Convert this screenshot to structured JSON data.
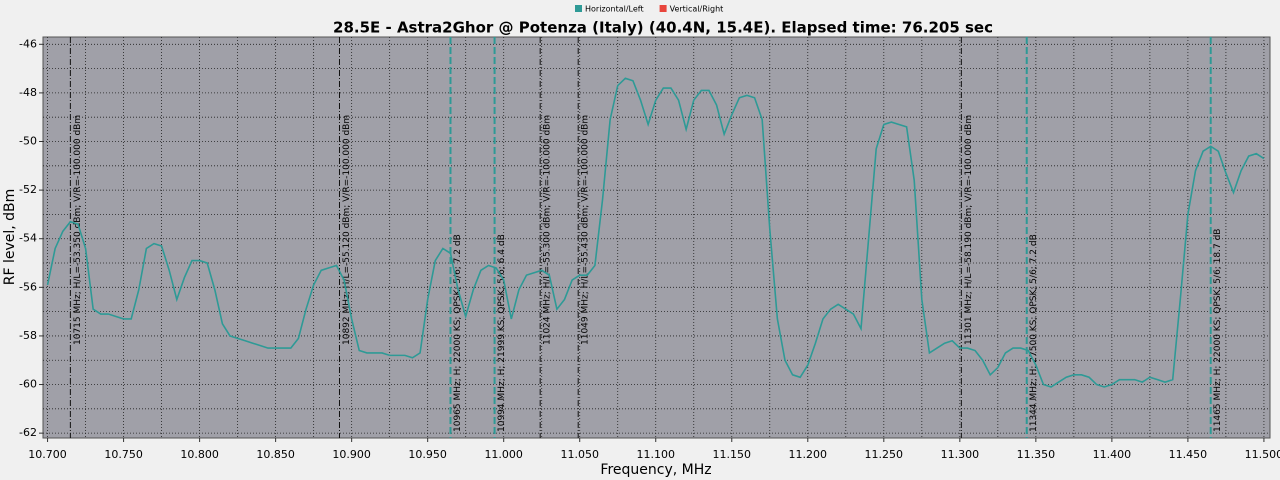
{
  "chart_data": {
    "type": "line",
    "title": "28.5E - Astra2Ghor @ Potenza (Italy) (40.4N, 15.4E). Elapsed time: 76.205 sec",
    "xlabel": "Frequency, MHz",
    "ylabel": "RF level, dBm",
    "legend": [
      {
        "name": "Horizontal/Left",
        "color": "#2e9a96"
      },
      {
        "name": "Vertical/Right",
        "color": "#e8453c"
      }
    ],
    "grid": true,
    "xlim": [
      10.697,
      11.504
    ],
    "ylim": [
      -62.2,
      -45.7
    ],
    "xticks": [
      {
        "value": 10.7,
        "label": "10.700"
      },
      {
        "value": 10.75,
        "label": "10.750"
      },
      {
        "value": 10.8,
        "label": "10.800"
      },
      {
        "value": 10.85,
        "label": "10.850"
      },
      {
        "value": 10.9,
        "label": "10.900"
      },
      {
        "value": 10.95,
        "label": "10.950"
      },
      {
        "value": 11.0,
        "label": "11.000"
      },
      {
        "value": 11.05,
        "label": "11.050"
      },
      {
        "value": 11.1,
        "label": "11.100"
      },
      {
        "value": 11.15,
        "label": "11.150"
      },
      {
        "value": 11.2,
        "label": "11.200"
      },
      {
        "value": 11.25,
        "label": "11.250"
      },
      {
        "value": 11.3,
        "label": "11.300"
      },
      {
        "value": 11.35,
        "label": "11.350"
      },
      {
        "value": 11.4,
        "label": "11.400"
      },
      {
        "value": 11.45,
        "label": "11.450"
      },
      {
        "value": 11.5,
        "label": "11.500"
      }
    ],
    "yticks": [
      -46,
      -48,
      -50,
      -52,
      -54,
      -56,
      -58,
      -60,
      -62
    ],
    "xgrid": [
      10.7,
      10.725,
      10.75,
      10.775,
      10.8,
      10.825,
      10.85,
      10.875,
      10.9,
      10.925,
      10.95,
      10.975,
      11.0,
      11.025,
      11.05,
      11.075,
      11.1,
      11.125,
      11.15,
      11.175,
      11.2,
      11.225,
      11.25,
      11.275,
      11.3,
      11.325,
      11.35,
      11.375,
      11.4,
      11.425,
      11.45,
      11.475,
      11.5
    ],
    "ygrid": [
      -46,
      -47,
      -48,
      -49,
      -50,
      -51,
      -52,
      -53,
      -54,
      -55,
      -56,
      -57,
      -58,
      -59,
      -60,
      -61,
      -62
    ],
    "x": [
      10.7,
      10.705,
      10.71,
      10.715,
      10.72,
      10.725,
      10.73,
      10.735,
      10.74,
      10.745,
      10.75,
      10.755,
      10.76,
      10.765,
      10.77,
      10.775,
      10.78,
      10.785,
      10.79,
      10.795,
      10.8,
      10.805,
      10.81,
      10.815,
      10.82,
      10.825,
      10.83,
      10.835,
      10.84,
      10.845,
      10.85,
      10.855,
      10.86,
      10.865,
      10.87,
      10.875,
      10.88,
      10.885,
      10.89,
      10.895,
      10.9,
      10.905,
      10.91,
      10.915,
      10.92,
      10.925,
      10.93,
      10.935,
      10.94,
      10.945,
      10.95,
      10.955,
      10.96,
      10.965,
      10.97,
      10.975,
      10.98,
      10.985,
      10.99,
      10.995,
      11.0,
      11.005,
      11.01,
      11.015,
      11.02,
      11.025,
      11.03,
      11.035,
      11.04,
      11.045,
      11.05,
      11.055,
      11.06,
      11.065,
      11.07,
      11.075,
      11.08,
      11.085,
      11.09,
      11.095,
      11.1,
      11.105,
      11.11,
      11.115,
      11.12,
      11.125,
      11.13,
      11.135,
      11.14,
      11.145,
      11.15,
      11.155,
      11.16,
      11.165,
      11.17,
      11.175,
      11.18,
      11.185,
      11.19,
      11.195,
      11.2,
      11.205,
      11.21,
      11.215,
      11.22,
      11.225,
      11.23,
      11.235,
      11.24,
      11.245,
      11.25,
      11.255,
      11.26,
      11.265,
      11.27,
      11.275,
      11.28,
      11.285,
      11.29,
      11.295,
      11.3,
      11.305,
      11.31,
      11.315,
      11.32,
      11.325,
      11.33,
      11.335,
      11.34,
      11.345,
      11.35,
      11.355,
      11.36,
      11.365,
      11.37,
      11.375,
      11.38,
      11.385,
      11.39,
      11.395,
      11.4,
      11.405,
      11.41,
      11.415,
      11.42,
      11.425,
      11.43,
      11.435,
      11.44,
      11.445,
      11.45,
      11.455,
      11.46,
      11.465,
      11.47,
      11.475,
      11.48,
      11.485,
      11.49,
      11.495,
      11.5
    ],
    "series": [
      {
        "color": "#2e9a96",
        "values": [
          -55.9,
          -54.4,
          -53.7,
          -53.3,
          -53.4,
          -54.4,
          -56.9,
          -57.1,
          -57.1,
          -57.2,
          -57.3,
          -57.3,
          -56.1,
          -54.4,
          -54.2,
          -54.3,
          -55.3,
          -56.5,
          -55.6,
          -54.9,
          -54.9,
          -55.0,
          -56.1,
          -57.5,
          -58.0,
          -58.1,
          -58.2,
          -58.3,
          -58.4,
          -58.5,
          -58.5,
          -58.5,
          -58.5,
          -58.1,
          -56.9,
          -55.9,
          -55.3,
          -55.2,
          -55.1,
          -55.7,
          -57.3,
          -58.6,
          -58.7,
          -58.7,
          -58.7,
          -58.8,
          -58.8,
          -58.8,
          -58.9,
          -58.7,
          -56.5,
          -54.9,
          -54.4,
          -54.6,
          -56.1,
          -57.2,
          -56.1,
          -55.3,
          -55.1,
          -55.2,
          -55.7,
          -57.3,
          -56.1,
          -55.5,
          -55.4,
          -55.3,
          -55.5,
          -56.9,
          -56.5,
          -55.7,
          -55.5,
          -55.5,
          -55.1,
          -52.4,
          -49.1,
          -47.7,
          -47.4,
          -47.5,
          -48.3,
          -49.3,
          -48.3,
          -47.8,
          -47.8,
          -48.3,
          -49.5,
          -48.3,
          -47.9,
          -47.9,
          -48.5,
          -49.7,
          -48.9,
          -48.2,
          -48.1,
          -48.2,
          -49.1,
          -53.6,
          -57.3,
          -59.0,
          -59.6,
          -59.7,
          -59.2,
          -58.3,
          -57.3,
          -56.9,
          -56.7,
          -56.9,
          -57.1,
          -57.7,
          -54.0,
          -50.3,
          -49.3,
          -49.2,
          -49.3,
          -49.4,
          -51.6,
          -56.5,
          -58.7,
          -58.5,
          -58.3,
          -58.2,
          -58.5,
          -58.5,
          -58.6,
          -59.0,
          -59.6,
          -59.3,
          -58.7,
          -58.5,
          -58.5,
          -58.6,
          -59.2,
          -60.0,
          -60.1,
          -59.9,
          -59.7,
          -59.6,
          -59.6,
          -59.7,
          -60.0,
          -60.1,
          -60.0,
          -59.8,
          -59.8,
          -59.8,
          -59.9,
          -59.7,
          -59.8,
          -59.9,
          -59.8,
          -56.5,
          -53.0,
          -51.2,
          -50.4,
          -50.2,
          -50.4,
          -51.3,
          -52.1,
          -51.2,
          -50.6,
          -50.5,
          -50.7
        ]
      }
    ],
    "markers": [
      {
        "x": 10.715,
        "style": "level",
        "label": "10715 MHz;  H/L=-53.350 dBm;  V/R=-100.000 dBm"
      },
      {
        "x": 10.892,
        "style": "level",
        "label": "10892 MHz;  H/L=-55.120 dBm;  V/R=-100.000 dBm"
      },
      {
        "x": 11.024,
        "style": "level",
        "label": "11024 MHz;  H/L=-55.300 dBm;  V/R=-100.000 dBm"
      },
      {
        "x": 11.049,
        "style": "level",
        "label": "11049 MHz;  H/L=-55.430 dBm;  V/R=-100.000 dBm"
      },
      {
        "x": 11.301,
        "style": "level",
        "label": "11301 MHz;  H/L=-58.190 dBm;  V/R=-100.000 dBm"
      },
      {
        "x": 10.965,
        "style": "transponder",
        "label": "10965 MHz; H; 22000 KS; QPSK; 5/6; 7.2 dB"
      },
      {
        "x": 10.994,
        "style": "transponder",
        "label": "10994 MHz; H; 21999 KS; QPSK; 5/6; 6.4 dB"
      },
      {
        "x": 11.344,
        "style": "transponder",
        "label": "11344 MHz; H; 27500 KS; QPSK; 5/6; 7.2 dB"
      },
      {
        "x": 11.465,
        "style": "transponder",
        "label": "11465 MHz; H; 22000 KS; QPSK; 5/6; 18.7 dB"
      }
    ]
  }
}
